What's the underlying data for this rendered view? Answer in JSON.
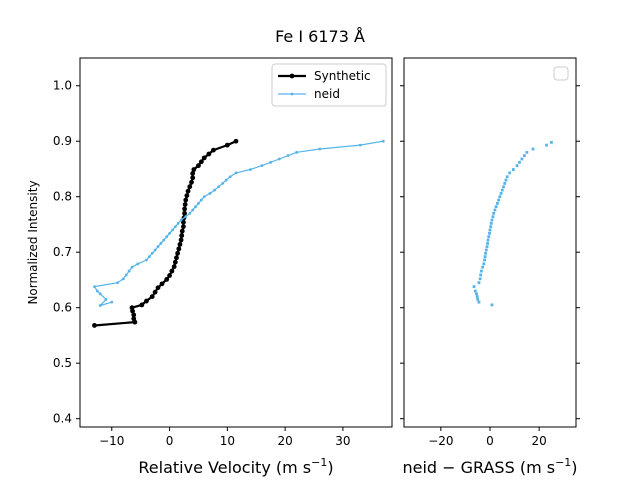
{
  "chart_data": [
    {
      "type": "line",
      "title": "Fe I 6173 Å",
      "xlabel": "Relative Velocity (m s",
      "xlabel_sup": "−1",
      "xlabel_close": ")",
      "ylabel": "Normalized Intensity",
      "xlim": [
        -15.5,
        38.5
      ],
      "ylim": [
        0.385,
        1.05
      ],
      "x_ticks": [
        -10,
        0,
        10,
        20,
        30
      ],
      "y_ticks": [
        0.4,
        0.5,
        0.6,
        0.7,
        0.8,
        0.9,
        1.0
      ],
      "grid": false,
      "legend": "top-right",
      "series": [
        {
          "name": "Synthetic",
          "color": "#000000",
          "points": [
            [
              -13.0,
              0.568
            ],
            [
              -6.0,
              0.574
            ],
            [
              -6.2,
              0.58
            ],
            [
              -6.2,
              0.587
            ],
            [
              -6.4,
              0.594
            ],
            [
              -6.5,
              0.6
            ],
            [
              -4.8,
              0.605
            ],
            [
              -4.0,
              0.612
            ],
            [
              -3.0,
              0.62
            ],
            [
              -2.5,
              0.628
            ],
            [
              -2.0,
              0.636
            ],
            [
              -1.3,
              0.643
            ],
            [
              -0.5,
              0.651
            ],
            [
              0.0,
              0.658
            ],
            [
              0.4,
              0.666
            ],
            [
              0.8,
              0.674
            ],
            [
              1.0,
              0.682
            ],
            [
              1.2,
              0.69
            ],
            [
              1.4,
              0.698
            ],
            [
              1.6,
              0.706
            ],
            [
              1.8,
              0.714
            ],
            [
              2.0,
              0.722
            ],
            [
              2.1,
              0.73
            ],
            [
              2.2,
              0.738
            ],
            [
              2.4,
              0.746
            ],
            [
              2.4,
              0.754
            ],
            [
              2.5,
              0.762
            ],
            [
              2.6,
              0.77
            ],
            [
              2.6,
              0.778
            ],
            [
              2.7,
              0.786
            ],
            [
              2.8,
              0.794
            ],
            [
              3.0,
              0.802
            ],
            [
              3.2,
              0.81
            ],
            [
              3.5,
              0.818
            ],
            [
              3.8,
              0.826
            ],
            [
              4.0,
              0.834
            ],
            [
              4.0,
              0.842
            ],
            [
              4.2,
              0.849
            ],
            [
              5.0,
              0.856
            ],
            [
              5.5,
              0.863
            ],
            [
              6.0,
              0.87
            ],
            [
              6.8,
              0.877
            ],
            [
              7.6,
              0.884
            ],
            [
              10.0,
              0.893
            ],
            [
              11.5,
              0.9
            ]
          ]
        },
        {
          "name": "neid",
          "color": "#56B4E9",
          "points": [
            [
              -10.0,
              0.61
            ],
            [
              -12.0,
              0.604
            ],
            [
              -11.0,
              0.615
            ],
            [
              -12.0,
              0.625
            ],
            [
              -12.5,
              0.63
            ],
            [
              -13.0,
              0.638
            ],
            [
              -9.0,
              0.645
            ],
            [
              -8.0,
              0.652
            ],
            [
              -7.5,
              0.659
            ],
            [
              -7.0,
              0.666
            ],
            [
              -6.5,
              0.673
            ],
            [
              -5.5,
              0.679
            ],
            [
              -4.0,
              0.686
            ],
            [
              -3.5,
              0.692
            ],
            [
              -3.0,
              0.698
            ],
            [
              -2.5,
              0.704
            ],
            [
              -2.0,
              0.71
            ],
            [
              -1.5,
              0.716
            ],
            [
              -1.0,
              0.722
            ],
            [
              -0.5,
              0.728
            ],
            [
              0.0,
              0.734
            ],
            [
              0.5,
              0.74
            ],
            [
              1.0,
              0.746
            ],
            [
              1.5,
              0.752
            ],
            [
              2.0,
              0.758
            ],
            [
              2.8,
              0.764
            ],
            [
              3.5,
              0.77
            ],
            [
              4.0,
              0.776
            ],
            [
              4.5,
              0.782
            ],
            [
              5.0,
              0.788
            ],
            [
              5.5,
              0.794
            ],
            [
              6.0,
              0.8
            ],
            [
              7.0,
              0.806
            ],
            [
              7.8,
              0.812
            ],
            [
              8.5,
              0.818
            ],
            [
              9.2,
              0.824
            ],
            [
              9.8,
              0.83
            ],
            [
              10.5,
              0.836
            ],
            [
              11.5,
              0.843
            ],
            [
              14.0,
              0.849
            ],
            [
              16.0,
              0.856
            ],
            [
              17.5,
              0.862
            ],
            [
              19.0,
              0.868
            ],
            [
              20.5,
              0.874
            ],
            [
              22.0,
              0.88
            ],
            [
              26.0,
              0.886
            ],
            [
              33.0,
              0.893
            ],
            [
              37.0,
              0.9
            ]
          ]
        }
      ]
    },
    {
      "type": "scatter",
      "title": "",
      "xlabel": "neid − GRASS (m s",
      "xlabel_sup": "−1",
      "xlabel_close": ")",
      "ylabel": "",
      "xlim": [
        -35,
        35
      ],
      "ylim": [
        0.385,
        1.05
      ],
      "x_ticks": [
        -20,
        0,
        20
      ],
      "grid": false,
      "legend": "top-right",
      "series": [
        {
          "name": "",
          "color": "#56B4E9",
          "points": [
            [
              0.8,
              0.605
            ],
            [
              -4.5,
              0.61
            ],
            [
              -5.0,
              0.615
            ],
            [
              -5.2,
              0.62
            ],
            [
              -5.5,
              0.625
            ],
            [
              -6.0,
              0.63
            ],
            [
              -6.5,
              0.638
            ],
            [
              -4.5,
              0.645
            ],
            [
              -4.0,
              0.652
            ],
            [
              -3.8,
              0.659
            ],
            [
              -3.5,
              0.666
            ],
            [
              -3.0,
              0.673
            ],
            [
              -2.5,
              0.679
            ],
            [
              -2.2,
              0.686
            ],
            [
              -2.0,
              0.692
            ],
            [
              -1.8,
              0.698
            ],
            [
              -1.5,
              0.704
            ],
            [
              -1.2,
              0.71
            ],
            [
              -1.0,
              0.716
            ],
            [
              -0.8,
              0.722
            ],
            [
              -0.5,
              0.728
            ],
            [
              -0.2,
              0.734
            ],
            [
              0.0,
              0.74
            ],
            [
              0.3,
              0.746
            ],
            [
              0.5,
              0.752
            ],
            [
              0.8,
              0.758
            ],
            [
              1.2,
              0.764
            ],
            [
              1.5,
              0.77
            ],
            [
              2.0,
              0.776
            ],
            [
              2.5,
              0.782
            ],
            [
              3.0,
              0.788
            ],
            [
              3.5,
              0.794
            ],
            [
              4.0,
              0.8
            ],
            [
              4.5,
              0.806
            ],
            [
              5.0,
              0.812
            ],
            [
              5.5,
              0.818
            ],
            [
              6.0,
              0.824
            ],
            [
              6.5,
              0.83
            ],
            [
              7.0,
              0.836
            ],
            [
              8.0,
              0.843
            ],
            [
              9.5,
              0.849
            ],
            [
              11.0,
              0.856
            ],
            [
              12.0,
              0.862
            ],
            [
              13.0,
              0.868
            ],
            [
              14.0,
              0.874
            ],
            [
              15.0,
              0.88
            ],
            [
              17.5,
              0.886
            ],
            [
              23.0,
              0.893
            ],
            [
              25.0,
              0.898
            ]
          ]
        }
      ]
    }
  ]
}
